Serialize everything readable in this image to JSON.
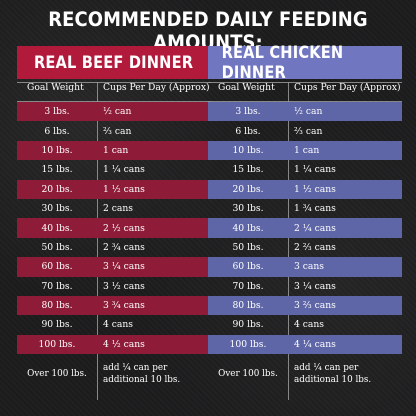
{
  "title": "RECOMMENDED DAILY FEEDING AMOUNTS:",
  "colors": {
    "beef": "#b21a3b",
    "beef_row": "#8e1c38",
    "chicken": "#7176c1",
    "chicken_row": "#5e66a8"
  },
  "beef": {
    "header": "REAL BEEF DINNER",
    "col_weight": "Goal Weight",
    "col_cups": "Cups Per Day (Approx)",
    "rows": [
      {
        "weight": "3 lbs.",
        "cups": "½ can"
      },
      {
        "weight": "6 lbs.",
        "cups": "⅔ can"
      },
      {
        "weight": "10 lbs.",
        "cups": "1 can"
      },
      {
        "weight": "15 lbs.",
        "cups": "1 ¼ cans"
      },
      {
        "weight": "20 lbs.",
        "cups": "1 ½ cans"
      },
      {
        "weight": "30 lbs.",
        "cups": "2 cans"
      },
      {
        "weight": "40 lbs.",
        "cups": "2 ½ cans"
      },
      {
        "weight": "50 lbs.",
        "cups": "2 ¾ cans"
      },
      {
        "weight": "60 lbs.",
        "cups": "3 ¼ cans"
      },
      {
        "weight": "70 lbs.",
        "cups": "3 ½ cans"
      },
      {
        "weight": "80 lbs.",
        "cups": "3 ¾ cans"
      },
      {
        "weight": "90 lbs.",
        "cups": "4 cans"
      },
      {
        "weight": "100 lbs.",
        "cups": "4 ½ cans"
      },
      {
        "weight": "Over 100 lbs.",
        "cups": "add ¼ can per additional 10 lbs."
      }
    ]
  },
  "chicken": {
    "header": "REAL CHICKEN DINNER",
    "col_weight": "Goal Weight",
    "col_cups": "Cups Per Day (Approx)",
    "rows": [
      {
        "weight": "3 lbs.",
        "cups": "½ can"
      },
      {
        "weight": "6 lbs.",
        "cups": "⅔ can"
      },
      {
        "weight": "10 lbs.",
        "cups": "1 can"
      },
      {
        "weight": "15 lbs.",
        "cups": "1 ¼ cans"
      },
      {
        "weight": "20 lbs.",
        "cups": "1 ½ cans"
      },
      {
        "weight": "30 lbs.",
        "cups": "1 ¾ cans"
      },
      {
        "weight": "40 lbs.",
        "cups": "2 ¼ cans"
      },
      {
        "weight": "50 lbs.",
        "cups": "2 ⅔ cans"
      },
      {
        "weight": "60 lbs.",
        "cups": "3 cans"
      },
      {
        "weight": "70 lbs.",
        "cups": "3 ¼ cans"
      },
      {
        "weight": "80 lbs.",
        "cups": "3 ⅔ cans"
      },
      {
        "weight": "90 lbs.",
        "cups": "4 cans"
      },
      {
        "weight": "100 lbs.",
        "cups": "4 ¼ cans"
      },
      {
        "weight": "Over 100 lbs.",
        "cups": "add ¼ can per additional 10 lbs."
      }
    ]
  }
}
